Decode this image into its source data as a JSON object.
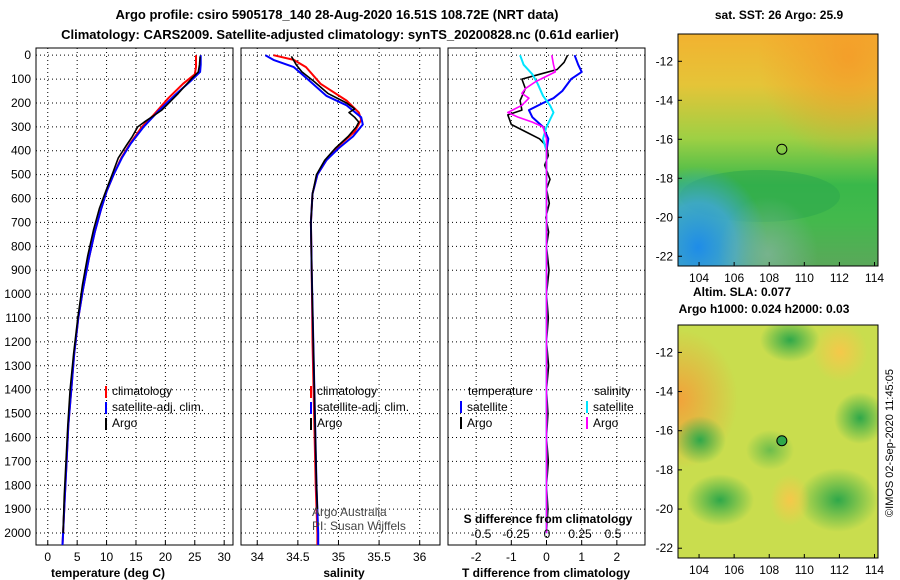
{
  "titles": {
    "line1": "Argo profile: csiro 5905178_140 28-Aug-2020 16.51S 108.72E (NRT data)",
    "line2": "Climatology: CARS2009. Satellite-adjusted climatology: synTS_20200828.nc (0.61d earlier)"
  },
  "colors": {
    "climatology": "#ff0000",
    "satellite": "#0000ff",
    "argo": "#000000",
    "sat_sal": "#00e5ff",
    "argo_sal": "#ff00ff"
  },
  "chart_data": [
    {
      "type": "line",
      "name": "temperature",
      "xlabel": "temperature (deg C)",
      "xlim": [
        -2,
        31.5
      ],
      "xticks": [
        0,
        5,
        10,
        15,
        20,
        25,
        30
      ],
      "ylim": [
        2050,
        -30
      ],
      "yticks": [
        0,
        100,
        200,
        300,
        400,
        500,
        600,
        700,
        800,
        900,
        1000,
        1100,
        1200,
        1300,
        1400,
        1500,
        1600,
        1700,
        1800,
        1900,
        2000
      ],
      "legend": {
        "position": "center-right",
        "entries": [
          "climatology",
          "satellite-adj. clim.",
          "Argo"
        ]
      },
      "series": [
        {
          "name": "climatology",
          "color": "#ff0000",
          "points": [
            [
              25.2,
              0
            ],
            [
              25.2,
              50
            ],
            [
              25.0,
              80
            ],
            [
              23.0,
              120
            ],
            [
              20.5,
              180
            ],
            [
              18.0,
              250
            ],
            [
              16.0,
              300
            ],
            [
              14.0,
              370
            ],
            [
              12.5,
              430
            ],
            [
              11.2,
              500
            ],
            [
              10.0,
              570
            ],
            [
              9.0,
              650
            ],
            [
              8.0,
              740
            ],
            [
              7.0,
              850
            ],
            [
              6.0,
              980
            ],
            [
              5.2,
              1100
            ],
            [
              4.5,
              1250
            ],
            [
              4.0,
              1400
            ],
            [
              3.5,
              1550
            ],
            [
              3.2,
              1700
            ],
            [
              2.9,
              1850
            ],
            [
              2.6,
              2000
            ],
            [
              2.5,
              2050
            ]
          ]
        },
        {
          "name": "satellite-adj. clim.",
          "color": "#0000ff",
          "points": [
            [
              26.0,
              0
            ],
            [
              26.0,
              40
            ],
            [
              25.9,
              70
            ],
            [
              24.2,
              110
            ],
            [
              21.5,
              170
            ],
            [
              18.6,
              240
            ],
            [
              16.3,
              300
            ],
            [
              14.1,
              370
            ],
            [
              12.6,
              430
            ],
            [
              11.2,
              500
            ],
            [
              10.0,
              570
            ],
            [
              9.0,
              650
            ],
            [
              8.0,
              740
            ],
            [
              7.0,
              850
            ],
            [
              6.0,
              980
            ],
            [
              5.2,
              1100
            ],
            [
              4.5,
              1250
            ],
            [
              4.0,
              1400
            ],
            [
              3.5,
              1550
            ],
            [
              3.2,
              1700
            ],
            [
              2.9,
              1850
            ],
            [
              2.6,
              2000
            ],
            [
              2.5,
              2050
            ]
          ]
        },
        {
          "name": "Argo",
          "color": "#000000",
          "points": [
            [
              25.9,
              5
            ],
            [
              25.8,
              40
            ],
            [
              25.6,
              70
            ],
            [
              24.4,
              100
            ],
            [
              22.2,
              160
            ],
            [
              20.6,
              200
            ],
            [
              19.4,
              230
            ],
            [
              17.6,
              260
            ],
            [
              16.4,
              280
            ],
            [
              15.3,
              300
            ],
            [
              14.4,
              340
            ],
            [
              13.3,
              380
            ],
            [
              12.0,
              430
            ],
            [
              11.1,
              490
            ],
            [
              10.0,
              560
            ],
            [
              8.8,
              640
            ],
            [
              7.8,
              730
            ],
            [
              6.8,
              840
            ],
            [
              5.9,
              960
            ],
            [
              5.1,
              1100
            ],
            [
              4.4,
              1250
            ],
            [
              3.8,
              1400
            ],
            [
              3.4,
              1550
            ],
            [
              3.1,
              1700
            ],
            [
              2.8,
              1850
            ],
            [
              2.6,
              2000
            ]
          ]
        }
      ]
    },
    {
      "type": "line",
      "name": "salinity",
      "xlabel": "salinity",
      "xlim": [
        33.8,
        36.25
      ],
      "xticks": [
        34,
        34.5,
        35,
        35.5,
        36
      ],
      "ylim": [
        2050,
        -30
      ],
      "legend": {
        "position": "center-right",
        "entries": [
          "climatology",
          "satellite-adj. clim.",
          "Argo"
        ]
      },
      "series": [
        {
          "name": "climatology",
          "color": "#ff0000",
          "points": [
            [
              34.2,
              0
            ],
            [
              34.45,
              20
            ],
            [
              34.6,
              50
            ],
            [
              34.78,
              120
            ],
            [
              35.1,
              190
            ],
            [
              35.25,
              240
            ],
            [
              35.28,
              270
            ],
            [
              35.2,
              320
            ],
            [
              35.0,
              380
            ],
            [
              34.85,
              440
            ],
            [
              34.74,
              500
            ],
            [
              34.68,
              580
            ],
            [
              34.66,
              700
            ],
            [
              34.67,
              900
            ],
            [
              34.68,
              1200
            ],
            [
              34.7,
              1500
            ],
            [
              34.72,
              1800
            ],
            [
              34.74,
              2000
            ],
            [
              34.74,
              2050
            ]
          ]
        },
        {
          "name": "satellite-adj. clim.",
          "color": "#0000ff",
          "points": [
            [
              34.1,
              0
            ],
            [
              34.2,
              20
            ],
            [
              34.45,
              50
            ],
            [
              34.62,
              100
            ],
            [
              34.85,
              170
            ],
            [
              35.1,
              210
            ],
            [
              35.28,
              260
            ],
            [
              35.3,
              290
            ],
            [
              35.18,
              340
            ],
            [
              35.0,
              390
            ],
            [
              34.85,
              440
            ],
            [
              34.74,
              500
            ],
            [
              34.68,
              580
            ],
            [
              34.66,
              700
            ],
            [
              34.67,
              900
            ],
            [
              34.69,
              1200
            ],
            [
              34.71,
              1500
            ],
            [
              34.73,
              1800
            ],
            [
              34.75,
              2000
            ],
            [
              34.75,
              2050
            ]
          ]
        },
        {
          "name": "Argo",
          "color": "#000000",
          "points": [
            [
              34.42,
              5
            ],
            [
              34.48,
              40
            ],
            [
              34.55,
              70
            ],
            [
              34.7,
              110
            ],
            [
              34.87,
              160
            ],
            [
              35.1,
              200
            ],
            [
              35.2,
              225
            ],
            [
              35.13,
              240
            ],
            [
              35.2,
              260
            ],
            [
              35.25,
              280
            ],
            [
              35.22,
              300
            ],
            [
              35.12,
              340
            ],
            [
              34.96,
              390
            ],
            [
              34.83,
              440
            ],
            [
              34.73,
              500
            ],
            [
              34.68,
              580
            ],
            [
              34.66,
              700
            ],
            [
              34.67,
              900
            ],
            [
              34.69,
              1200
            ],
            [
              34.71,
              1500
            ],
            [
              34.73,
              1800
            ],
            [
              34.74,
              1900
            ]
          ]
        }
      ]
    },
    {
      "type": "line",
      "name": "difference",
      "xlabel": "T difference from climatology",
      "xlim": [
        -2.8,
        2.8
      ],
      "xticks": [
        -2,
        -1,
        0,
        1,
        2
      ],
      "sub_label": "S difference from climatology",
      "sub_ticks": [
        "-0.5",
        "-0.25",
        "0",
        "0.25",
        "0.5"
      ],
      "ylim": [
        2050,
        -30
      ],
      "legend": {
        "position": "center",
        "entries": [
          "temperature",
          "satellite",
          "Argo",
          "salinity",
          "satellite",
          "Argo"
        ]
      },
      "series": [
        {
          "name": "T satellite",
          "color": "#0000ff",
          "points": [
            [
              0.8,
              0
            ],
            [
              0.9,
              40
            ],
            [
              1.0,
              70
            ],
            [
              0.7,
              100
            ],
            [
              0.45,
              150
            ],
            [
              0.2,
              180
            ],
            [
              -0.1,
              200
            ],
            [
              -0.5,
              230
            ],
            [
              -0.4,
              260
            ],
            [
              -0.1,
              300
            ],
            [
              0.05,
              350
            ],
            [
              0.0,
              400
            ],
            [
              0.0,
              600
            ],
            [
              0.0,
              2000
            ]
          ]
        },
        {
          "name": "T Argo",
          "color": "#000000",
          "points": [
            [
              0.6,
              0
            ],
            [
              0.5,
              30
            ],
            [
              0.3,
              60
            ],
            [
              -0.2,
              80
            ],
            [
              -0.7,
              100
            ],
            [
              -0.6,
              140
            ],
            [
              -0.75,
              190
            ],
            [
              -0.7,
              230
            ],
            [
              -1.1,
              250
            ],
            [
              -1.0,
              290
            ],
            [
              -0.6,
              320
            ],
            [
              -0.2,
              350
            ],
            [
              0.0,
              380
            ],
            [
              0.05,
              420
            ],
            [
              -0.05,
              460
            ],
            [
              0.1,
              520
            ],
            [
              0.0,
              560
            ],
            [
              0.08,
              620
            ],
            [
              -0.02,
              680
            ],
            [
              0.06,
              740
            ],
            [
              0.0,
              800
            ],
            [
              0.07,
              900
            ],
            [
              0.0,
              1000
            ],
            [
              0.05,
              1100
            ],
            [
              0.0,
              1200
            ],
            [
              0.06,
              1300
            ],
            [
              0.0,
              1400
            ],
            [
              0.04,
              1500
            ],
            [
              0.0,
              1600
            ],
            [
              0.05,
              1700
            ],
            [
              0.0,
              1800
            ],
            [
              0.04,
              1900
            ],
            [
              0.0,
              2000
            ]
          ]
        },
        {
          "name": "S satellite",
          "color": "#00e5ff",
          "points": [
            [
              -0.75,
              0
            ],
            [
              -0.65,
              40
            ],
            [
              -0.4,
              80
            ],
            [
              -0.25,
              120
            ],
            [
              -0.1,
              170
            ],
            [
              0.1,
              210
            ],
            [
              0.2,
              240
            ],
            [
              0.0,
              300
            ],
            [
              -0.1,
              350
            ],
            [
              0.0,
              400
            ],
            [
              0.0,
              600
            ],
            [
              0.0,
              2000
            ]
          ]
        },
        {
          "name": "S Argo",
          "color": "#ff00ff",
          "points": [
            [
              0.15,
              0
            ],
            [
              0.2,
              40
            ],
            [
              0.25,
              70
            ],
            [
              -0.3,
              110
            ],
            [
              -0.6,
              140
            ],
            [
              -0.7,
              160
            ],
            [
              -0.5,
              180
            ],
            [
              -0.7,
              210
            ],
            [
              -1.1,
              240
            ],
            [
              -0.8,
              260
            ],
            [
              -0.4,
              280
            ],
            [
              -0.1,
              300
            ],
            [
              0.0,
              350
            ],
            [
              0.0,
              500
            ],
            [
              0.0,
              2000
            ]
          ]
        }
      ]
    }
  ],
  "maps": {
    "sst": {
      "title": "sat. SST: 26 Argo: 25.9",
      "xticks": [
        104,
        106,
        108,
        110,
        112,
        114
      ],
      "yticks": [
        -12,
        -14,
        -16,
        -18,
        -20,
        -22
      ],
      "xlim": [
        102.8,
        114.2
      ],
      "ylim": [
        -22.5,
        -10.6
      ],
      "argo_position": {
        "lon": 108.72,
        "lat": -16.51
      }
    },
    "sla": {
      "title_line1": "Altim. SLA: 0.077",
      "title_line2": "Argo h1000: 0.024 h2000: 0.03",
      "xticks": [
        104,
        106,
        108,
        110,
        112,
        114
      ],
      "yticks": [
        -12,
        -14,
        -16,
        -18,
        -20,
        -22
      ],
      "xlim": [
        102.8,
        114.2
      ],
      "ylim": [
        -22.5,
        -10.6
      ],
      "argo_position": {
        "lon": 108.72,
        "lat": -16.51
      }
    }
  },
  "credits": {
    "line1": "Argo Australia",
    "line2": "PI: Susan Wijffels",
    "stamp": "©IMOS 02-Sep-2020 11:45:05"
  }
}
